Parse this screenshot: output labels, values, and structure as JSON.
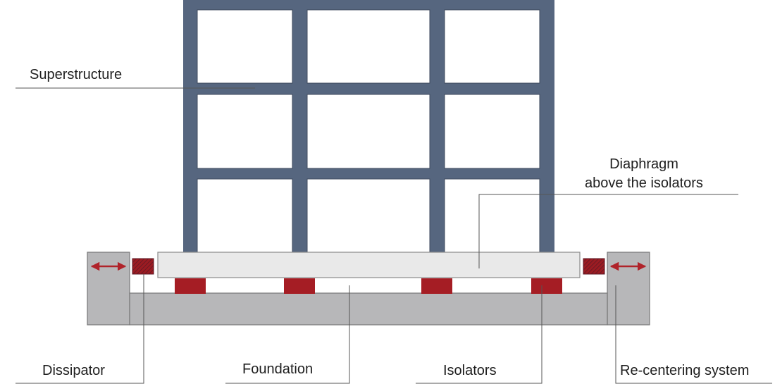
{
  "labels": {
    "superstructure": "Superstructure",
    "diaphragm_line1": "Diaphragm",
    "diaphragm_line2": "above the isolators",
    "dissipator": "Dissipator",
    "foundation": "Foundation",
    "isolators": "Isolators",
    "recentering": "Re-centering system"
  },
  "colors": {
    "frame": "#56667f",
    "slab": "#e9e9e9",
    "foundation": "#b7b7b9",
    "isolator": "#a51d24",
    "dissipator": "#9c1b22",
    "arrow": "#b0232a",
    "leader": "#555555"
  },
  "icons": {
    "left_arrow": "double-arrow-icon",
    "right_arrow": "double-arrow-icon"
  }
}
